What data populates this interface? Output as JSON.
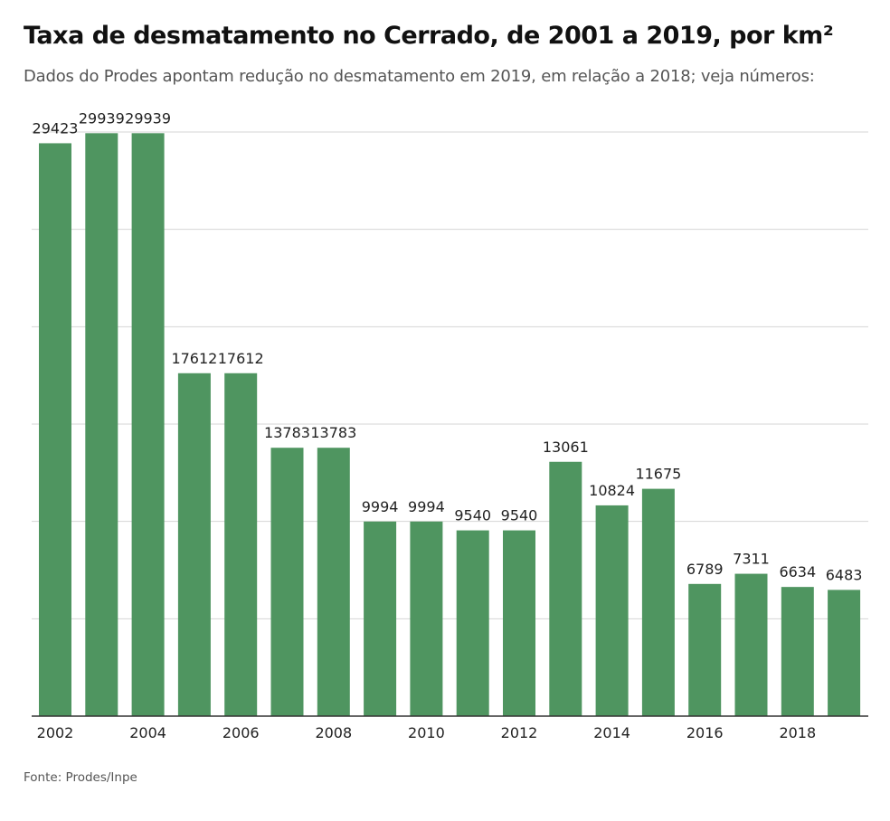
{
  "chart_data": {
    "type": "bar",
    "title": "Taxa de desmatamento no Cerrado, de 2001 a 2019, por km²",
    "subtitle": "Dados do Prodes apontam redução no desmatamento em 2019, em relação a 2018; veja números:",
    "source": "Fonte: Prodes/Inpe",
    "categories": [
      "2002",
      "2003",
      "2004",
      "2005",
      "2006",
      "2007",
      "2008",
      "2009",
      "2010",
      "2011",
      "2012",
      "2013",
      "2014",
      "2015",
      "2016",
      "2017",
      "2018",
      "2019"
    ],
    "values": [
      29423,
      29939,
      29939,
      17612,
      17612,
      13783,
      13783,
      9994,
      9994,
      9540,
      9540,
      13061,
      10824,
      11675,
      6789,
      7311,
      6634,
      6483
    ],
    "xtick_labels": [
      "2002",
      "2004",
      "2006",
      "2008",
      "2010",
      "2012",
      "2014",
      "2016",
      "2018"
    ],
    "xlabel": "",
    "ylabel": "",
    "ylim": [
      0,
      30000
    ],
    "grid": true,
    "gridline_step": 5000,
    "bar_color": "#4f9560",
    "data_labels": true
  }
}
